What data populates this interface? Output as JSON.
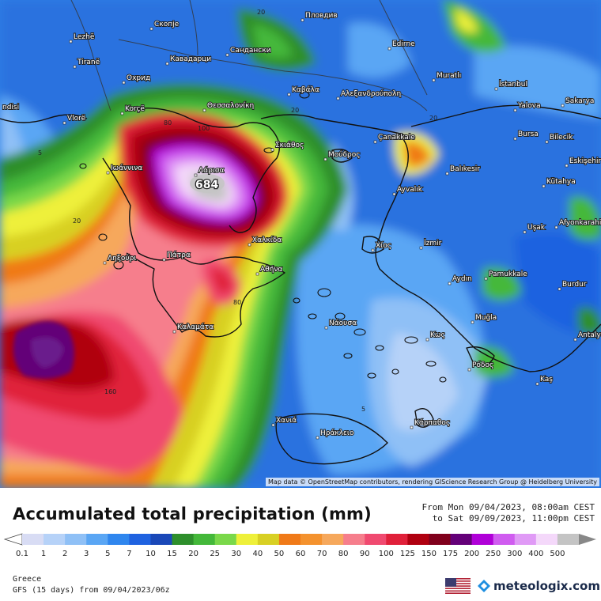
{
  "title": "Accumulated total precipitation (mm)",
  "period": {
    "from": "From Mon 09/04/2023, 08:00am CEST",
    "to": "to Sat 09/09/2023, 11:00pm CEST"
  },
  "region": "Greece",
  "model_run": "GFS (15 days) from 09/04/2023/06z",
  "brand": "meteologix.com",
  "attribution": "Map data © OpenStreetMap contributors, rendering GIScience Research Group @ Heidelberg University",
  "scale": {
    "labels": [
      "0.1",
      "1",
      "2",
      "3",
      "5",
      "7",
      "10",
      "15",
      "20",
      "25",
      "30",
      "40",
      "50",
      "60",
      "70",
      "80",
      "90",
      "100",
      "125",
      "150",
      "175",
      "200",
      "250",
      "300",
      "400",
      "500"
    ],
    "colors": [
      "#d8dcf4",
      "#b6d2f8",
      "#8fc0f6",
      "#5aa6f4",
      "#2f86ee",
      "#1f62e0",
      "#1a48b8",
      "#2e8f2c",
      "#44b83a",
      "#7ad84a",
      "#eef03a",
      "#d8d024",
      "#f07a18",
      "#f4922e",
      "#f6a85c",
      "#f67e8c",
      "#f04a70",
      "#e0203a",
      "#b00010",
      "#80001c",
      "#640078",
      "#b000d8",
      "#d05cf0",
      "#e09af6",
      "#f4d8fa",
      "#c4c4c4"
    ]
  },
  "max_value_label": "684",
  "contour_labels": [
    "5",
    "20",
    "80",
    "100",
    "160"
  ],
  "cities": [
    {
      "name": "Пловдив"
    },
    {
      "name": "Скопје"
    },
    {
      "name": "Lezhë"
    },
    {
      "name": "Tiranë"
    },
    {
      "name": "Кавадарци"
    },
    {
      "name": "Сандански"
    },
    {
      "name": "Edirne"
    },
    {
      "name": "Охрид"
    },
    {
      "name": "Muratlı"
    },
    {
      "name": "İstanbul"
    },
    {
      "name": "Καβάλα"
    },
    {
      "name": "Αλεξανδρούπολη"
    },
    {
      "name": "Θεσσαλονίκη"
    },
    {
      "name": "Korçë"
    },
    {
      "name": "Vlorë"
    },
    {
      "name": "Yalova"
    },
    {
      "name": "Sakarya"
    },
    {
      "name": "Çanakkale"
    },
    {
      "name": "Bursa"
    },
    {
      "name": "Bilecik"
    },
    {
      "name": "Σκιάθος"
    },
    {
      "name": "Μούδρος"
    },
    {
      "name": "Balıkesir"
    },
    {
      "name": "Eskişehir"
    },
    {
      "name": "Ιωάννινα"
    },
    {
      "name": "Λάρισα"
    },
    {
      "name": "Kütahya"
    },
    {
      "name": "Ayvalık"
    },
    {
      "name": "Uşak"
    },
    {
      "name": "Afyonkarahisar"
    },
    {
      "name": "Χαλκίδα"
    },
    {
      "name": "Χίος"
    },
    {
      "name": "İzmir"
    },
    {
      "name": "Ληξούρι"
    },
    {
      "name": "Πάτρα"
    },
    {
      "name": "Αθήνα"
    },
    {
      "name": "Pamukkale"
    },
    {
      "name": "Aydın"
    },
    {
      "name": "Burdur"
    },
    {
      "name": "Νάουσα"
    },
    {
      "name": "Καλαμάτα"
    },
    {
      "name": "Muğla"
    },
    {
      "name": "Antalya"
    },
    {
      "name": "Κως"
    },
    {
      "name": "Ρόδος"
    },
    {
      "name": "Kaş"
    },
    {
      "name": "Χανιά"
    },
    {
      "name": "Ηράκλειο"
    },
    {
      "name": "Κάρπαθος"
    },
    {
      "name": "ndisi"
    }
  ]
}
